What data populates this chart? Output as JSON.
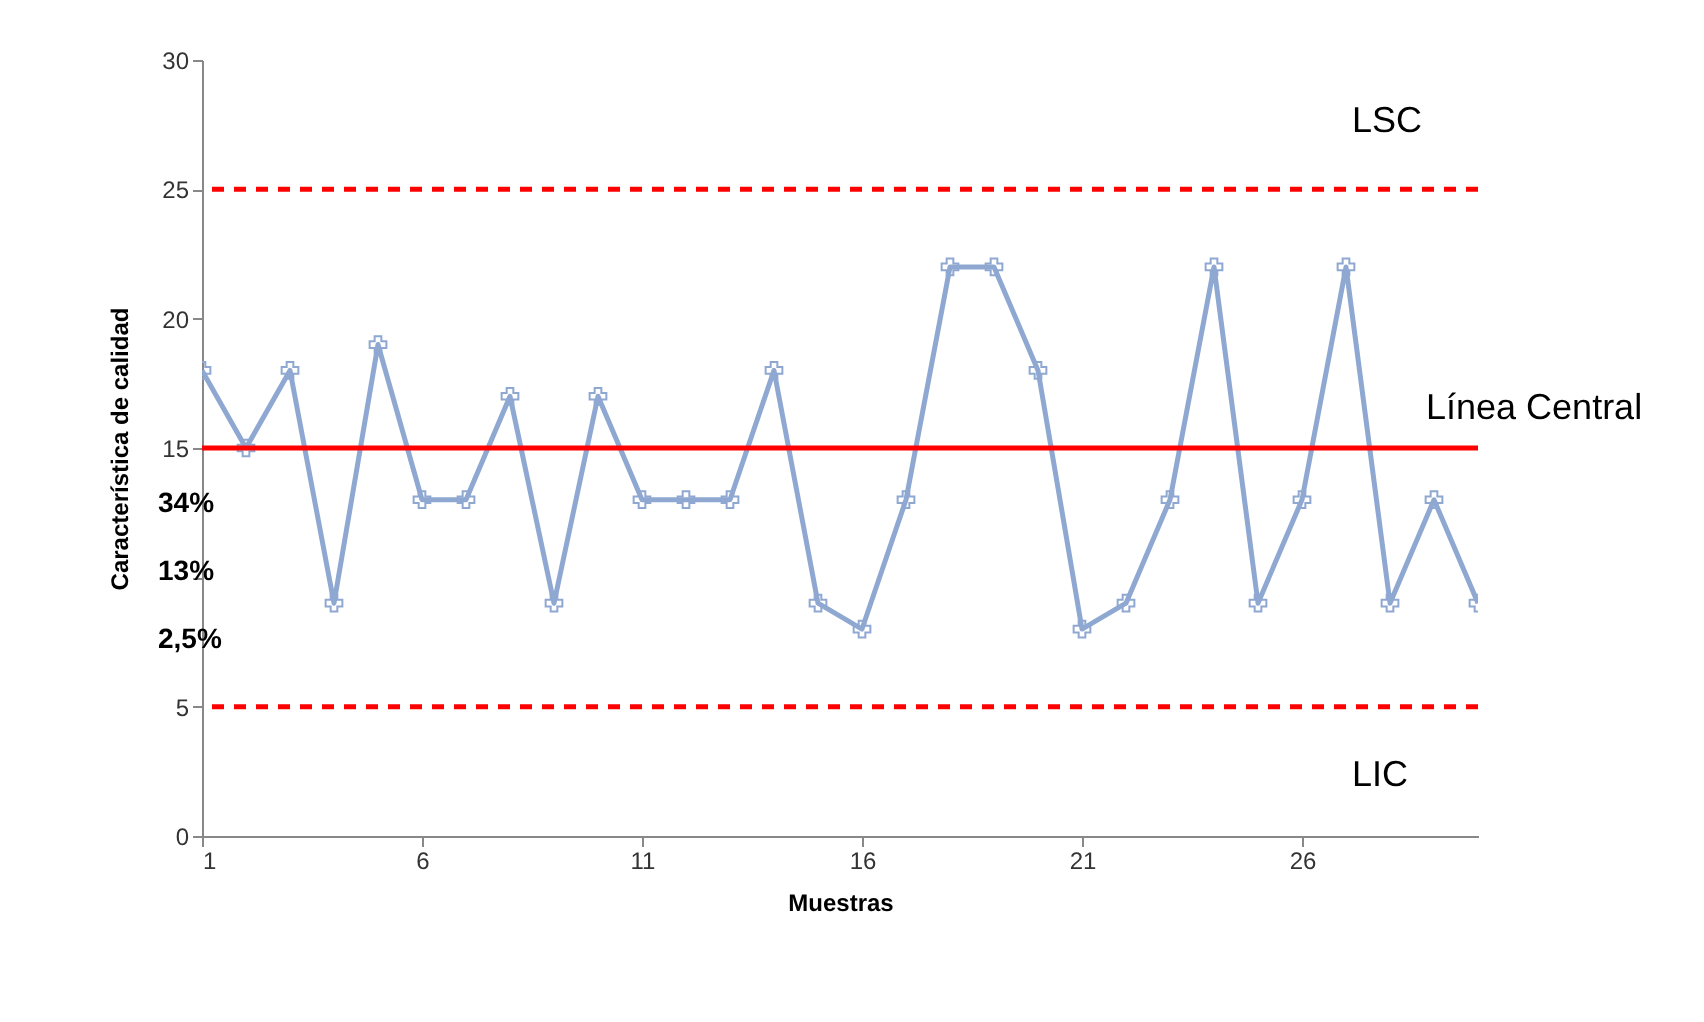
{
  "chart_data": {
    "type": "line",
    "xlabel": "Muestras",
    "ylabel": "Característica de calidad",
    "x": [
      1,
      2,
      3,
      4,
      5,
      6,
      7,
      8,
      9,
      10,
      11,
      12,
      13,
      14,
      15,
      16,
      17,
      18,
      19,
      20,
      21,
      22,
      23,
      24,
      25,
      26,
      27,
      28,
      29,
      30
    ],
    "series": [
      {
        "color": "#8fa8d2",
        "values": [
          18,
          15,
          18,
          9,
          19,
          13,
          13,
          17,
          9,
          17,
          13,
          13,
          13,
          18,
          9,
          8,
          13,
          22,
          22,
          18,
          8,
          9,
          13,
          22,
          9,
          13,
          22,
          9,
          13,
          9
        ]
      }
    ],
    "xlim": [
      1,
      30
    ],
    "xticks": [
      1,
      6,
      11,
      16,
      21,
      26
    ],
    "ylim": [
      0,
      30
    ],
    "yticks": [
      0,
      5,
      {
        "value": 10,
        "label": null
      },
      15,
      20,
      25,
      30
    ],
    "grid": false,
    "marker": "cross",
    "line_style": "solid",
    "ref_lines": [
      {
        "axis": "y",
        "value": 25,
        "label": "LSC",
        "color": "#ff0000",
        "line_style": "dashed"
      },
      {
        "axis": "y",
        "value": 15,
        "label": "Línea Central",
        "color": "#ff0000",
        "line_style": "solid"
      },
      {
        "axis": "y",
        "value": 5,
        "label": "LIC",
        "color": "#ff0000",
        "line_style": "dashed"
      }
    ],
    "annotations": [
      "34%",
      "13%",
      "2,5%"
    ]
  }
}
